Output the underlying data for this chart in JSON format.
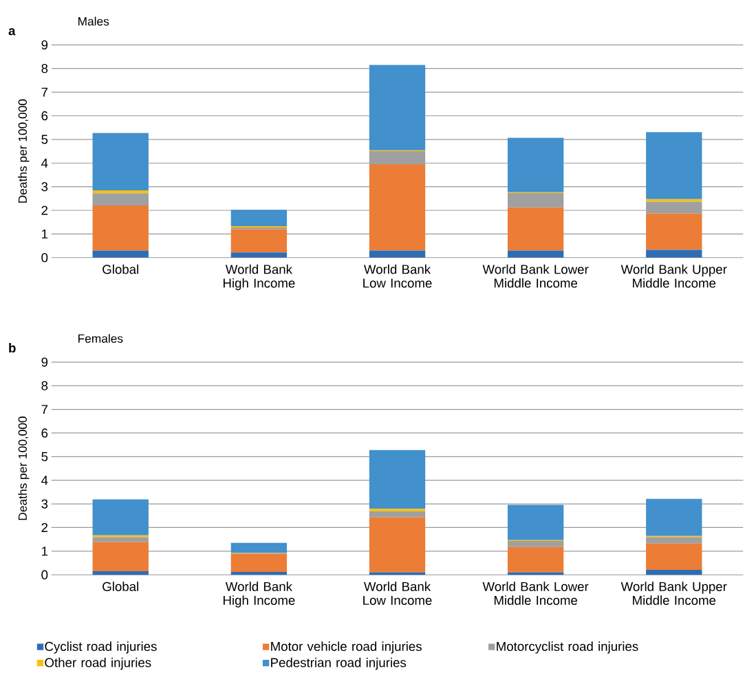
{
  "chart_data": [
    {
      "type": "bar",
      "title": "Males",
      "annotations": [
        "a"
      ],
      "ylabel": "Deaths per 100,000",
      "stacked": true,
      "grid": "y",
      "legend": false,
      "categories": [
        "Global",
        "World Bank High Income",
        "World Bank Low Income",
        "World Bank Lower Middle Income",
        "World Bank Upper Middle Income"
      ],
      "ylim": [
        0,
        9
      ],
      "yticks": [
        0,
        1,
        2,
        3,
        4,
        5,
        6,
        7,
        8,
        9
      ],
      "series": [
        {
          "color": "#2e6db4",
          "values": [
            0.3,
            0.22,
            0.3,
            0.3,
            0.33
          ]
        },
        {
          "color": "#ec7d36",
          "values": [
            1.9,
            0.98,
            3.65,
            1.82,
            1.53
          ]
        },
        {
          "color": "#a0a0a0",
          "values": [
            0.52,
            0.07,
            0.55,
            0.61,
            0.5
          ]
        },
        {
          "color": "#f9c012",
          "values": [
            0.12,
            0.06,
            0.04,
            0.03,
            0.11
          ]
        },
        {
          "color": "#4290cc",
          "values": [
            2.43,
            0.69,
            3.61,
            2.31,
            2.84
          ]
        }
      ]
    },
    {
      "type": "bar",
      "title": "Females",
      "annotations": [
        "b"
      ],
      "ylabel": "Deaths per 100,000",
      "stacked": true,
      "grid": "y",
      "legend": "bottom",
      "categories": [
        "Global",
        "World Bank High Income",
        "World Bank Low Income",
        "World Bank Lower Middle Income",
        "World Bank Upper Middle Income"
      ],
      "ylim": [
        0,
        9
      ],
      "yticks": [
        0,
        1,
        2,
        3,
        4,
        5,
        6,
        7,
        8,
        9
      ],
      "series": [
        {
          "name": "Cyclist road injuries",
          "color": "#2e6db4",
          "values": [
            0.15,
            0.12,
            0.1,
            0.1,
            0.21
          ]
        },
        {
          "name": "Motor vehicle road injuries",
          "color": "#ec7d36",
          "values": [
            1.23,
            0.77,
            2.33,
            1.08,
            1.11
          ]
        },
        {
          "name": "Motorcyclist road injuries",
          "color": "#a0a0a0",
          "values": [
            0.21,
            0.02,
            0.25,
            0.25,
            0.27
          ]
        },
        {
          "name": "Other road injuries",
          "color": "#f9c012",
          "values": [
            0.08,
            0.01,
            0.11,
            0.04,
            0.05
          ]
        },
        {
          "name": "Pedestrian road injuries",
          "color": "#4290cc",
          "values": [
            1.52,
            0.43,
            2.49,
            1.49,
            1.57
          ]
        }
      ]
    }
  ]
}
